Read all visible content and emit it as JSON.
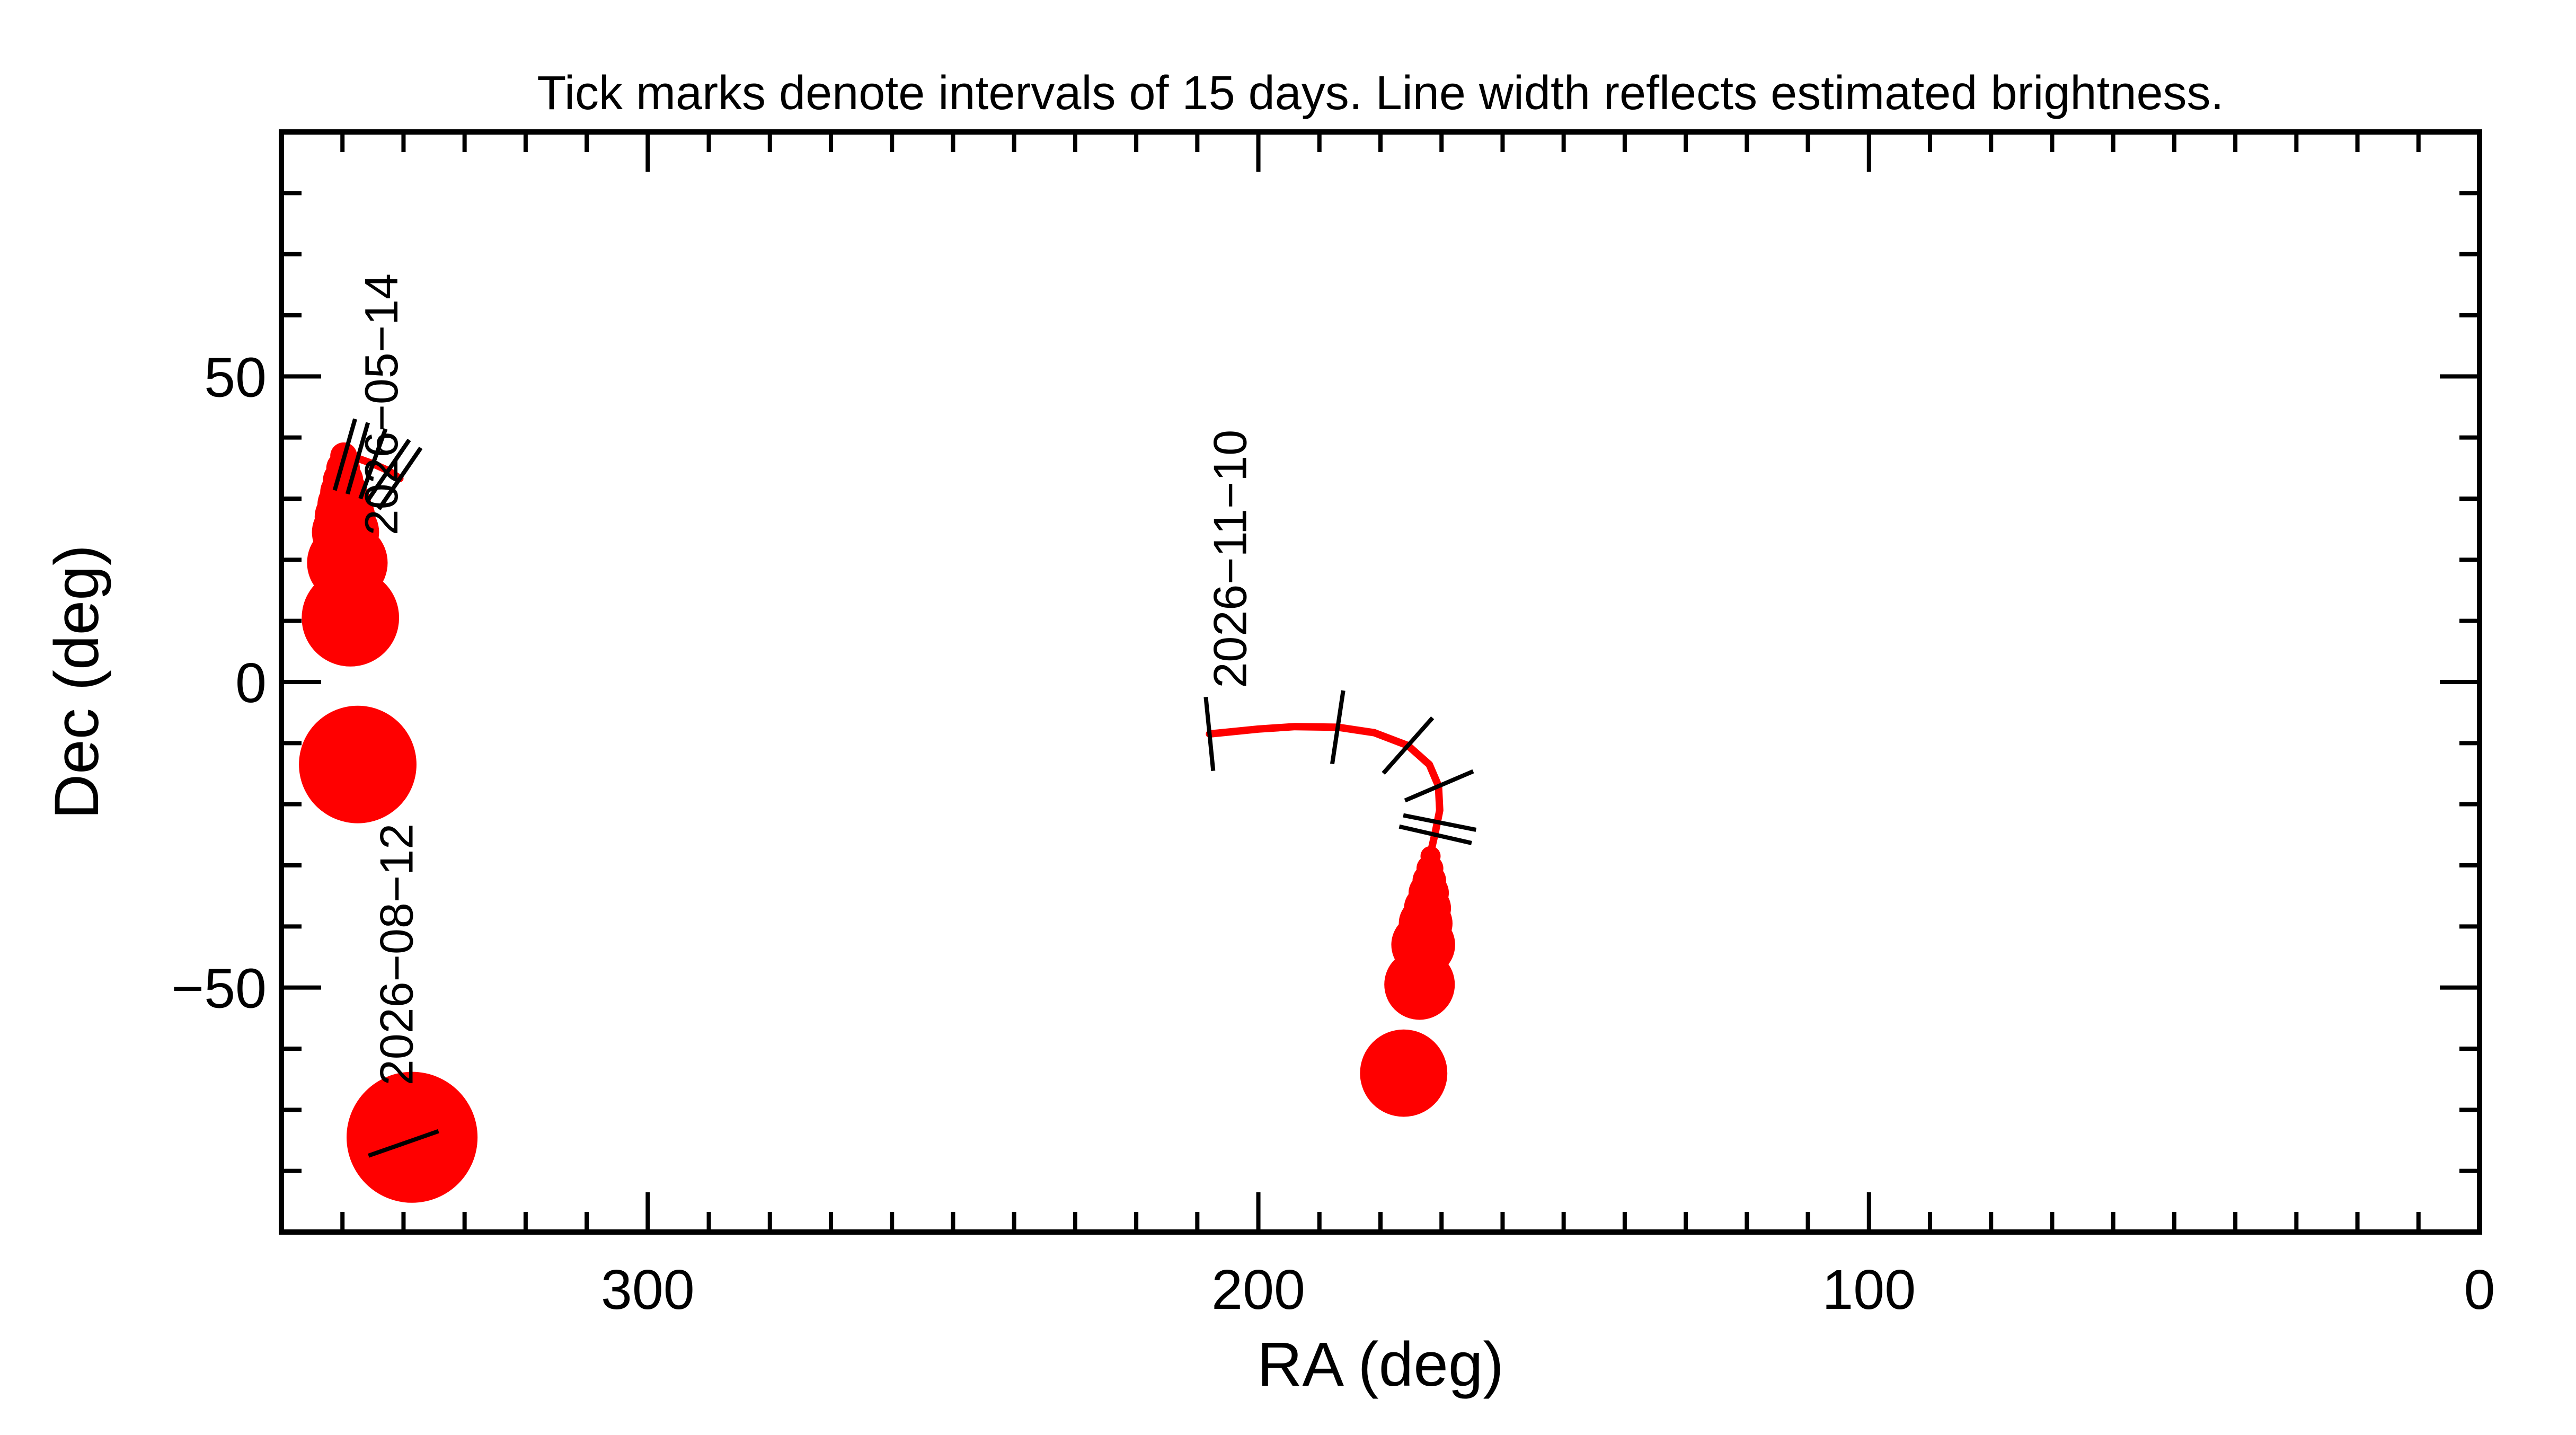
{
  "chart_data": {
    "type": "line",
    "title": "Tick marks denote intervals of 15 days.  Line width reflects estimated brightness.",
    "xlabel": "RA (deg)",
    "ylabel": "Dec (deg)",
    "xlim": [
      360,
      0
    ],
    "ylim": [
      -90,
      90
    ],
    "x_ticks": [
      300,
      200,
      100,
      0
    ],
    "y_ticks": [
      50,
      0,
      -50
    ],
    "x_minor_step": 10,
    "y_minor_step": 10,
    "grid": false,
    "colors": {
      "track": "#ff0000",
      "tick_marks": "#000000",
      "frame": "#000000"
    },
    "series": [
      {
        "segment": "left",
        "track": [
          {
            "ra": 349.6,
            "dec": 37.2
          },
          {
            "ra": 347.5,
            "dec": 36.6
          },
          {
            "ra": 345.0,
            "dec": 35.7
          },
          {
            "ra": 342.5,
            "dec": 34.6
          },
          {
            "ra": 340.6,
            "dec": 33.3
          }
        ],
        "dots": [
          {
            "ra": 349.8,
            "dec": 37.0,
            "r": 0.4
          },
          {
            "ra": 349.9,
            "dec": 35.0,
            "r": 0.5
          },
          {
            "ra": 349.9,
            "dec": 33.0,
            "r": 0.6
          },
          {
            "ra": 349.8,
            "dec": 31.0,
            "r": 0.7
          },
          {
            "ra": 349.7,
            "dec": 29.0,
            "r": 0.8
          },
          {
            "ra": 349.6,
            "dec": 27.0,
            "r": 0.9
          },
          {
            "ra": 349.5,
            "dec": 24.5,
            "r": 1.0
          },
          {
            "ra": 349.2,
            "dec": 19.5,
            "r": 1.2
          },
          {
            "ra": 348.7,
            "dec": 10.5,
            "r": 1.45
          },
          {
            "ra": 347.5,
            "dec": -13.5,
            "r": 1.75
          },
          {
            "ra": 338.6,
            "dec": -74.5,
            "r": 1.95
          }
        ],
        "tick_marks": [
          {
            "ra": 349.6,
            "dec": 37.2
          },
          {
            "ra": 347.5,
            "dec": 36.6
          },
          {
            "ra": 345.0,
            "dec": 35.7
          },
          {
            "ra": 342.5,
            "dec": 34.6
          },
          {
            "ra": 340.6,
            "dec": 33.3
          },
          {
            "ra": 340.0,
            "dec": -75.5
          }
        ],
        "date_labels": [
          {
            "text": "2026−05−14",
            "ra": 341.0,
            "dec": 24.0
          },
          {
            "text": "2026−08−12",
            "ra": 338.5,
            "dec": -66.0
          }
        ]
      },
      {
        "segment": "right",
        "track": [
          {
            "ra": 208.0,
            "dec": -8.5
          },
          {
            "ra": 200.0,
            "dec": -7.7
          },
          {
            "ra": 194.0,
            "dec": -7.3
          },
          {
            "ra": 187.0,
            "dec": -7.4
          },
          {
            "ra": 181.0,
            "dec": -8.3
          },
          {
            "ra": 175.5,
            "dec": -10.4
          },
          {
            "ra": 172.0,
            "dec": -13.5
          },
          {
            "ra": 170.5,
            "dec": -17.0
          },
          {
            "ra": 170.3,
            "dec": -21.0
          },
          {
            "ra": 171.0,
            "dec": -24.5
          },
          {
            "ra": 171.8,
            "dec": -28.0
          }
        ],
        "dots": [
          {
            "ra": 171.8,
            "dec": -28.5,
            "r": 0.3
          },
          {
            "ra": 171.9,
            "dec": -30.5,
            "r": 0.4
          },
          {
            "ra": 172.0,
            "dec": -32.5,
            "r": 0.5
          },
          {
            "ra": 172.1,
            "dec": -34.5,
            "r": 0.6
          },
          {
            "ra": 172.3,
            "dec": -37.0,
            "r": 0.7
          },
          {
            "ra": 172.6,
            "dec": -39.5,
            "r": 0.8
          },
          {
            "ra": 173.0,
            "dec": -43.0,
            "r": 0.95
          },
          {
            "ra": 173.6,
            "dec": -49.5,
            "r": 1.05
          },
          {
            "ra": 176.2,
            "dec": -64.0,
            "r": 1.3
          }
        ],
        "tick_marks": [
          {
            "ra": 208.0,
            "dec": -8.5
          },
          {
            "ra": 187.0,
            "dec": -7.4
          },
          {
            "ra": 175.5,
            "dec": -10.4
          },
          {
            "ra": 170.4,
            "dec": -17.0
          },
          {
            "ra": 170.3,
            "dec": -23.0
          },
          {
            "ra": 171.0,
            "dec": -25.0
          }
        ],
        "date_labels": [
          {
            "text": "2026−11−10",
            "ra": 202.0,
            "dec": -1.0
          }
        ]
      }
    ]
  }
}
